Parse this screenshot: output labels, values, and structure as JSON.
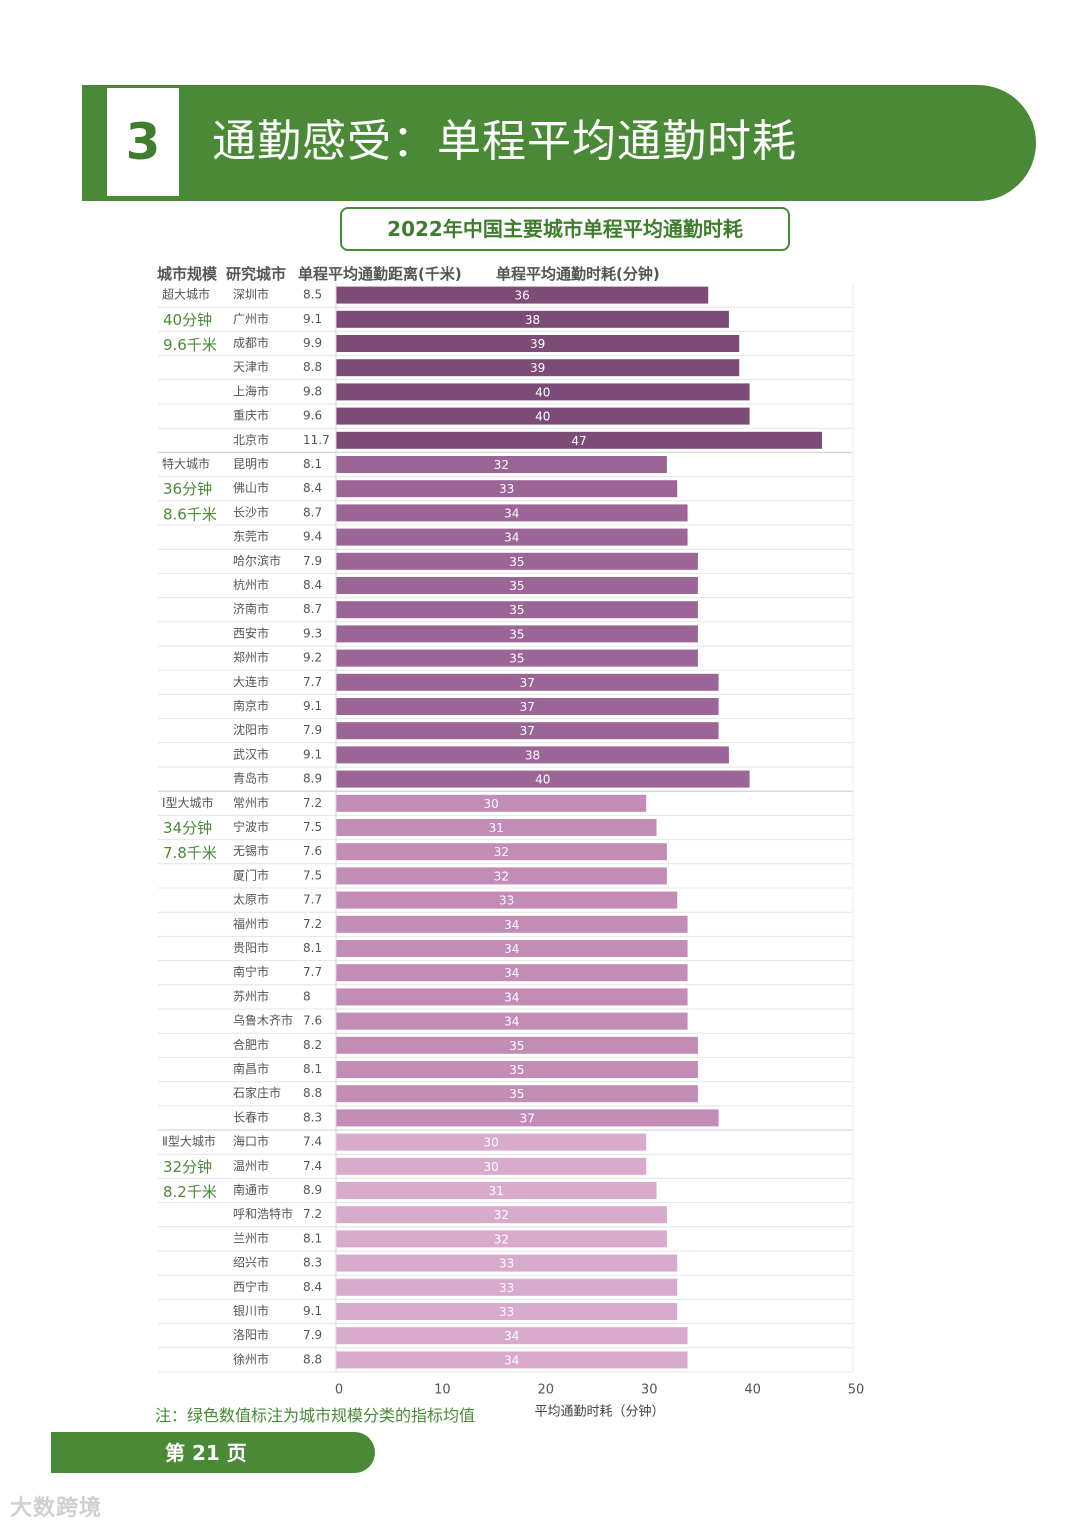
{
  "header": {
    "section_number": "3",
    "title": "通勤感受：单程平均通勤时耗"
  },
  "chart_title": "2022年中国主要城市单程平均通勤时耗",
  "columns": {
    "scale": "城市规模",
    "city": "研究城市",
    "distance": "单程平均通勤距离(千米)",
    "time": "单程平均通勤时耗(分钟)"
  },
  "footnote": "注：绿色数值标注为城市规模分类的指标均值",
  "footer": {
    "page_label": "第 21 页"
  },
  "watermark": "大数跨境",
  "colors": {
    "green": "#4a8a37",
    "super_large": "#7d4b78",
    "mega": "#9b6597",
    "type1_large": "#c28cb6",
    "type2_large": "#d8aacc"
  },
  "chart_data": {
    "type": "bar",
    "orientation": "horizontal",
    "xlabel": "平均通勤时耗（分钟）",
    "xlim": [
      0,
      50
    ],
    "xticks": [
      0,
      10,
      20,
      30,
      40,
      50
    ],
    "groups": [
      {
        "name": "超大城市",
        "avg_time": "40分钟",
        "avg_distance": "9.6千米",
        "color": "#7d4b78",
        "cities": [
          {
            "city": "深圳市",
            "distance": "8.5",
            "value": 36
          },
          {
            "city": "广州市",
            "distance": "9.1",
            "value": 38
          },
          {
            "city": "成都市",
            "distance": "9.9",
            "value": 39
          },
          {
            "city": "天津市",
            "distance": "8.8",
            "value": 39
          },
          {
            "city": "上海市",
            "distance": "9.8",
            "value": 40
          },
          {
            "city": "重庆市",
            "distance": "9.6",
            "value": 40
          },
          {
            "city": "北京市",
            "distance": "11.7",
            "value": 47
          }
        ]
      },
      {
        "name": "特大城市",
        "avg_time": "36分钟",
        "avg_distance": "8.6千米",
        "color": "#9b6597",
        "cities": [
          {
            "city": "昆明市",
            "distance": "8.1",
            "value": 32
          },
          {
            "city": "佛山市",
            "distance": "8.4",
            "value": 33
          },
          {
            "city": "长沙市",
            "distance": "8.7",
            "value": 34
          },
          {
            "city": "东莞市",
            "distance": "9.4",
            "value": 34
          },
          {
            "city": "哈尔滨市",
            "distance": "7.9",
            "value": 35
          },
          {
            "city": "杭州市",
            "distance": "8.4",
            "value": 35
          },
          {
            "city": "济南市",
            "distance": "8.7",
            "value": 35
          },
          {
            "city": "西安市",
            "distance": "9.3",
            "value": 35
          },
          {
            "city": "郑州市",
            "distance": "9.2",
            "value": 35
          },
          {
            "city": "大连市",
            "distance": "7.7",
            "value": 37
          },
          {
            "city": "南京市",
            "distance": "9.1",
            "value": 37
          },
          {
            "city": "沈阳市",
            "distance": "7.9",
            "value": 37
          },
          {
            "city": "武汉市",
            "distance": "9.1",
            "value": 38
          },
          {
            "city": "青岛市",
            "distance": "8.9",
            "value": 40
          }
        ]
      },
      {
        "name": "Ⅰ型大城市",
        "avg_time": "34分钟",
        "avg_distance": "7.8千米",
        "color": "#c28cb6",
        "cities": [
          {
            "city": "常州市",
            "distance": "7.2",
            "value": 30
          },
          {
            "city": "宁波市",
            "distance": "7.5",
            "value": 31
          },
          {
            "city": "无锡市",
            "distance": "7.6",
            "value": 32
          },
          {
            "city": "厦门市",
            "distance": "7.5",
            "value": 32
          },
          {
            "city": "太原市",
            "distance": "7.7",
            "value": 33
          },
          {
            "city": "福州市",
            "distance": "7.2",
            "value": 34
          },
          {
            "city": "贵阳市",
            "distance": "8.1",
            "value": 34
          },
          {
            "city": "南宁市",
            "distance": "7.7",
            "value": 34
          },
          {
            "city": "苏州市",
            "distance": "8",
            "value": 34
          },
          {
            "city": "乌鲁木齐市",
            "distance": "7.6",
            "value": 34
          },
          {
            "city": "合肥市",
            "distance": "8.2",
            "value": 35
          },
          {
            "city": "南昌市",
            "distance": "8.1",
            "value": 35
          },
          {
            "city": "石家庄市",
            "distance": "8.8",
            "value": 35
          },
          {
            "city": "长春市",
            "distance": "8.3",
            "value": 37
          }
        ]
      },
      {
        "name": "Ⅱ型大城市",
        "avg_time": "32分钟",
        "avg_distance": "8.2千米",
        "color": "#d8aacc",
        "cities": [
          {
            "city": "海口市",
            "distance": "7.4",
            "value": 30
          },
          {
            "city": "温州市",
            "distance": "7.4",
            "value": 30
          },
          {
            "city": "南通市",
            "distance": "8.9",
            "value": 31
          },
          {
            "city": "呼和浩特市",
            "distance": "7.2",
            "value": 32
          },
          {
            "city": "兰州市",
            "distance": "8.1",
            "value": 32
          },
          {
            "city": "绍兴市",
            "distance": "8.3",
            "value": 33
          },
          {
            "city": "西宁市",
            "distance": "8.4",
            "value": 33
          },
          {
            "city": "银川市",
            "distance": "9.1",
            "value": 33
          },
          {
            "city": "洛阳市",
            "distance": "7.9",
            "value": 34
          },
          {
            "city": "徐州市",
            "distance": "8.8",
            "value": 34
          }
        ]
      }
    ]
  }
}
